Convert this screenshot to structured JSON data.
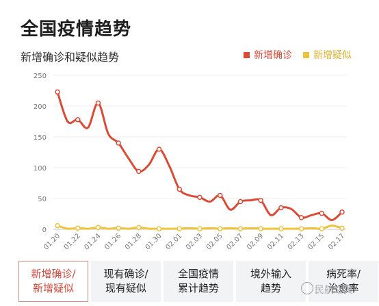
{
  "page": {
    "title": "全国疫情趋势"
  },
  "chart_title": "新增确诊和疑似趋势",
  "legend": [
    {
      "label": "新增确诊",
      "color": "#dc4a36"
    },
    {
      "label": "新增疑似",
      "color": "#f0c33c"
    }
  ],
  "chart_data": {
    "type": "line",
    "title": "新增确诊和疑似趋势",
    "x_tick_labels": [
      "01.20",
      "01.22",
      "01.24",
      "01.26",
      "01.28",
      "01.30",
      "02.01",
      "02.03",
      "02.05",
      "02.07",
      "02.09",
      "02.11",
      "02.13",
      "02.15",
      "02.17"
    ],
    "y_ticks": [
      0,
      50,
      100,
      150,
      200,
      250
    ],
    "ylim": [
      0,
      250
    ],
    "grid": true,
    "legend_position": "top-right",
    "series": [
      {
        "name": "新增确诊",
        "color": "#dc4a36",
        "values": [
          223,
          175,
          178,
          165,
          205,
          155,
          140,
          115,
          94,
          105,
          130,
          103,
          65,
          55,
          52,
          45,
          55,
          32,
          45,
          47,
          47,
          23,
          35,
          33,
          19,
          23,
          26,
          15,
          28
        ],
        "markers_at": [
          0,
          2,
          4,
          6,
          8,
          10,
          12,
          14,
          16,
          18,
          20,
          22,
          24,
          26,
          28
        ]
      },
      {
        "name": "新增疑似",
        "color": "#f0c33c",
        "values": [
          6,
          1,
          2,
          1,
          3,
          1,
          2,
          1,
          3,
          1,
          1,
          1,
          1,
          2,
          1,
          2,
          1,
          2,
          1,
          2,
          1,
          1,
          1,
          1,
          1,
          2,
          1,
          6,
          2
        ],
        "markers_at": [
          0,
          2,
          4,
          6,
          8,
          10,
          12,
          14,
          16,
          18,
          20,
          22,
          24,
          26,
          28
        ]
      }
    ]
  },
  "tabs": [
    {
      "label": "新增确诊/\n新增疑似",
      "active": true
    },
    {
      "label": "现有确诊/\n现有疑似",
      "active": false
    },
    {
      "label": "全国疫情\n累计趋势",
      "active": false
    },
    {
      "label": "境外输入\n趋势",
      "active": false
    },
    {
      "label": "病死率/\n治愈率",
      "active": false
    }
  ],
  "watermark": "民航之翼"
}
